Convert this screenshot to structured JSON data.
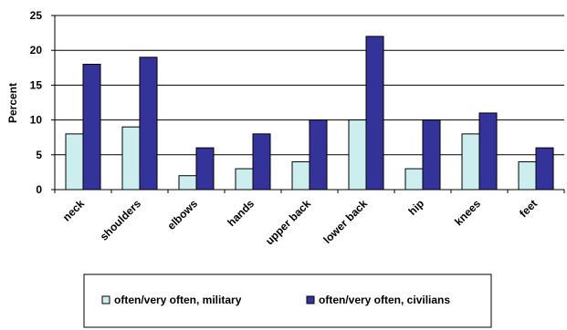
{
  "chart_data": {
    "type": "bar",
    "title": "",
    "xlabel": "",
    "ylabel": "Percent",
    "ylim": [
      0,
      25
    ],
    "yticks": [
      0,
      5,
      10,
      15,
      20,
      25
    ],
    "grid": true,
    "legend_position": "bottom",
    "categories": [
      "neck",
      "shoulders",
      "elbows",
      "hands",
      "upper back",
      "lower back",
      "hip",
      "knees",
      "feet"
    ],
    "series": [
      {
        "name": "often/very often, military",
        "color": "#cceeee",
        "values": [
          8,
          9,
          2,
          3,
          4,
          10,
          3,
          8,
          4
        ]
      },
      {
        "name": "often/very often, civilians",
        "color": "#333399",
        "values": [
          18,
          19,
          6,
          8,
          10,
          22,
          10,
          11,
          6
        ]
      }
    ]
  }
}
